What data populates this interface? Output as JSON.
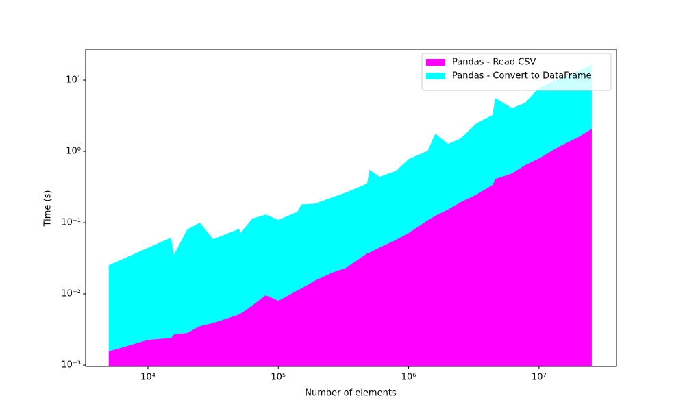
{
  "chart_data": {
    "type": "stacked-area",
    "x_label": "Number of elements",
    "y_label": "Time (s)",
    "x": [
      5000,
      10000,
      15000,
      15800,
      20000,
      25000,
      31600,
      50000,
      51200,
      63000,
      80000,
      100000,
      140000,
      150000,
      190000,
      260000,
      330000,
      480000,
      500000,
      600000,
      800000,
      1000000,
      1400000,
      1600000,
      2000000,
      2500000,
      3300000,
      4400000,
      4600000,
      6200000,
      7800000,
      10000000,
      14500000,
      20000000,
      25400000
    ],
    "series": [
      {
        "name": "Pandas - Read CSV",
        "color": "#ff00ff",
        "values": [
          0.00156,
          0.00227,
          0.0024,
          0.0027,
          0.00283,
          0.00353,
          0.0039,
          0.00515,
          0.0053,
          0.00687,
          0.0096,
          0.008,
          0.0112,
          0.0119,
          0.0153,
          0.02,
          0.0232,
          0.037,
          0.038,
          0.045,
          0.0575,
          0.0718,
          0.108,
          0.125,
          0.153,
          0.194,
          0.248,
          0.338,
          0.41,
          0.492,
          0.64,
          0.8,
          1.19,
          1.59,
          2.08
        ]
      },
      {
        "name": "Pandas - Convert to DataFrame",
        "color": "#00ffff",
        "values": [
          0.0237,
          0.0421,
          0.059,
          0.0326,
          0.0774,
          0.0965,
          0.0548,
          0.0767,
          0.0659,
          0.107,
          0.12,
          0.101,
          0.131,
          0.168,
          0.169,
          0.207,
          0.242,
          0.316,
          0.512,
          0.395,
          0.478,
          0.708,
          0.912,
          1.655,
          1.117,
          1.326,
          2.232,
          2.902,
          5.21,
          3.548,
          4.16,
          7.04,
          9.51,
          11.81,
          14.52
        ]
      }
    ],
    "xscale": "log",
    "yscale": "log",
    "xlim": [
      3327,
      39300000
    ],
    "ylim": [
      0.000957,
      27.1
    ],
    "xticks": [
      {
        "value": 10000,
        "label": "10⁴"
      },
      {
        "value": 100000,
        "label": "10⁵"
      },
      {
        "value": 1000000,
        "label": "10⁶"
      },
      {
        "value": 10000000,
        "label": "10⁷"
      }
    ],
    "yticks": [
      {
        "value": 0.001,
        "label": "10⁻³"
      },
      {
        "value": 0.01,
        "label": "10⁻²"
      },
      {
        "value": 0.1,
        "label": "10⁻¹"
      },
      {
        "value": 1,
        "label": "10⁰"
      },
      {
        "value": 10,
        "label": "10¹"
      }
    ],
    "legend": "upper right",
    "grid": false
  }
}
